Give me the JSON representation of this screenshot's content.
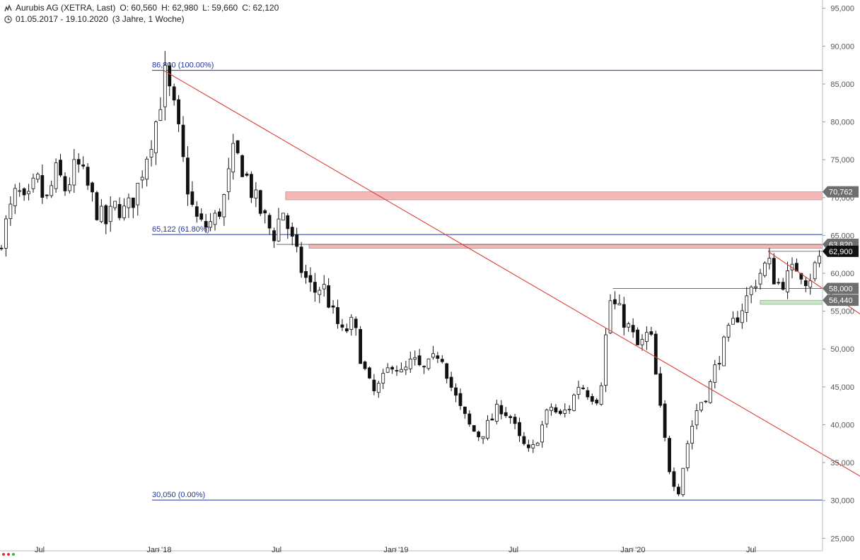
{
  "header": {
    "name": "Aurubis AG (XETRA, Last)",
    "open": "O: 60,560",
    "high": "H: 62,980",
    "low": "L: 59,660",
    "close": "C: 62,120",
    "range": "01.05.2017 - 19.10.2020",
    "period": "(3 Jahre, 1 Woche)"
  },
  "chart_data": {
    "type": "candlestick",
    "ylim": [
      24000,
      96000
    ],
    "y_ticks": [
      "25,000",
      "30,000",
      "35,000",
      "40,000",
      "45,000",
      "50,000",
      "55,000",
      "60,000",
      "65,000",
      "70,000",
      "75,000",
      "80,000",
      "85,000",
      "90,000",
      "95,000"
    ],
    "y_tick_values": [
      25000,
      30000,
      35000,
      40000,
      45000,
      50000,
      55000,
      60000,
      65000,
      70000,
      75000,
      80000,
      85000,
      90000,
      95000
    ],
    "x_ticks": [
      {
        "label": "Jul",
        "date": "2017-07-01"
      },
      {
        "label": "Jan '18",
        "date": "2018-01-01"
      },
      {
        "label": "Jul",
        "date": "2018-07-01"
      },
      {
        "label": "Jan '19",
        "date": "2019-01-01"
      },
      {
        "label": "Jul",
        "date": "2019-07-01"
      },
      {
        "label": "Jan '20",
        "date": "2020-01-01"
      },
      {
        "label": "Jul",
        "date": "2020-07-01"
      }
    ],
    "x_range": [
      "2017-05-01",
      "2020-10-19"
    ],
    "price_path": [
      [
        "2017-05-01",
        63000
      ],
      [
        "2017-05-15",
        66500
      ],
      [
        "2017-06-01",
        71000
      ],
      [
        "2017-06-15",
        68500
      ],
      [
        "2017-07-01",
        72500
      ],
      [
        "2017-07-15",
        69000
      ],
      [
        "2017-08-01",
        73500
      ],
      [
        "2017-08-15",
        71000
      ],
      [
        "2017-09-01",
        74500
      ],
      [
        "2017-09-15",
        72000
      ],
      [
        "2017-10-01",
        68500
      ],
      [
        "2017-10-15",
        66500
      ],
      [
        "2017-11-01",
        69000
      ],
      [
        "2017-11-15",
        68000
      ],
      [
        "2017-12-01",
        70500
      ],
      [
        "2017-12-15",
        75000
      ],
      [
        "2018-01-01",
        80000
      ],
      [
        "2018-01-15",
        86000
      ],
      [
        "2018-02-01",
        80500
      ],
      [
        "2018-02-15",
        73000
      ],
      [
        "2018-03-01",
        67500
      ],
      [
        "2018-03-15",
        66000
      ],
      [
        "2018-04-01",
        67000
      ],
      [
        "2018-04-15",
        69500
      ],
      [
        "2018-05-01",
        76000
      ],
      [
        "2018-05-15",
        74000
      ],
      [
        "2018-06-01",
        70000
      ],
      [
        "2018-06-15",
        67500
      ],
      [
        "2018-07-01",
        65000
      ],
      [
        "2018-07-15",
        68500
      ],
      [
        "2018-08-01",
        63500
      ],
      [
        "2018-08-15",
        60000
      ],
      [
        "2018-09-01",
        57500
      ],
      [
        "2018-09-15",
        58500
      ],
      [
        "2018-10-01",
        54500
      ],
      [
        "2018-10-15",
        52000
      ],
      [
        "2018-11-01",
        53500
      ],
      [
        "2018-11-15",
        48000
      ],
      [
        "2018-12-01",
        44000
      ],
      [
        "2018-12-15",
        45500
      ],
      [
        "2019-01-01",
        48500
      ],
      [
        "2019-01-15",
        46500
      ],
      [
        "2019-02-01",
        48500
      ],
      [
        "2019-02-15",
        47000
      ],
      [
        "2019-03-01",
        48000
      ],
      [
        "2019-03-15",
        50000
      ],
      [
        "2019-04-01",
        45000
      ],
      [
        "2019-04-15",
        42000
      ],
      [
        "2019-05-01",
        39500
      ],
      [
        "2019-05-15",
        38500
      ],
      [
        "2019-06-01",
        40500
      ],
      [
        "2019-06-15",
        42500
      ],
      [
        "2019-07-01",
        41000
      ],
      [
        "2019-07-15",
        38000
      ],
      [
        "2019-08-01",
        36000
      ],
      [
        "2019-08-15",
        39000
      ],
      [
        "2019-09-01",
        42500
      ],
      [
        "2019-09-15",
        41000
      ],
      [
        "2019-10-01",
        42500
      ],
      [
        "2019-10-15",
        45500
      ],
      [
        "2019-11-01",
        44000
      ],
      [
        "2019-11-15",
        43500
      ],
      [
        "2019-12-01",
        56500
      ],
      [
        "2019-12-15",
        55000
      ],
      [
        "2020-01-01",
        52500
      ],
      [
        "2020-01-15",
        50000
      ],
      [
        "2020-02-01",
        52500
      ],
      [
        "2020-02-15",
        43000
      ],
      [
        "2020-03-01",
        34500
      ],
      [
        "2020-03-15",
        31000
      ],
      [
        "2020-04-01",
        38500
      ],
      [
        "2020-04-15",
        42500
      ],
      [
        "2020-05-01",
        44500
      ],
      [
        "2020-05-15",
        48500
      ],
      [
        "2020-06-01",
        52000
      ],
      [
        "2020-06-15",
        54500
      ],
      [
        "2020-07-01",
        57000
      ],
      [
        "2020-07-15",
        59500
      ],
      [
        "2020-08-01",
        61500
      ],
      [
        "2020-08-15",
        58500
      ],
      [
        "2020-09-01",
        59500
      ],
      [
        "2020-09-15",
        61000
      ],
      [
        "2020-10-01",
        59000
      ],
      [
        "2020-10-19",
        62120
      ]
    ],
    "fib_levels": [
      {
        "label": "86,800 (100.00%)",
        "value": 86800
      },
      {
        "label": "65,122 (61.80%)",
        "value": 65122
      },
      {
        "label": "30,050 (0.00%)",
        "value": 30050
      }
    ],
    "trendlines": [
      {
        "from": [
          "2018-01-08",
          86800
        ],
        "to": [
          "2020-10-19",
          36100
        ]
      },
      {
        "from": [
          "2020-07-27",
          62900
        ],
        "to": [
          "2020-10-19",
          58000
        ]
      }
    ],
    "zones": [
      {
        "from": "2018-07-15",
        "low": 69700,
        "high": 70762,
        "color": "#f4b8b8"
      },
      {
        "from": "2018-08-20",
        "low": 63300,
        "high": 63820,
        "color": "#f4b8b8"
      },
      {
        "from": "2020-07-15",
        "low": 55900,
        "high": 56440,
        "color": "#c7e8c2"
      }
    ],
    "price_labels": [
      {
        "label": "70,762",
        "value": 70762,
        "bg": "#6e6e6e",
        "fg": "#ffffff"
      },
      {
        "label": "63,820",
        "value": 63820,
        "bg": "#6e6e6e",
        "fg": "#ffffff"
      },
      {
        "label": "62,900",
        "value": 62900,
        "bg": "#111111",
        "fg": "#ffffff"
      },
      {
        "label": "58,000",
        "value": 58000,
        "bg": "#6e6e6e",
        "fg": "#ffffff"
      },
      {
        "label": "56,440",
        "value": 56440,
        "bg": "#6e6e6e",
        "fg": "#ffffff"
      }
    ],
    "colors": {
      "fib": "#2233aa",
      "trend": "#d9403a",
      "candle": "#111111",
      "support": "#555555"
    }
  }
}
